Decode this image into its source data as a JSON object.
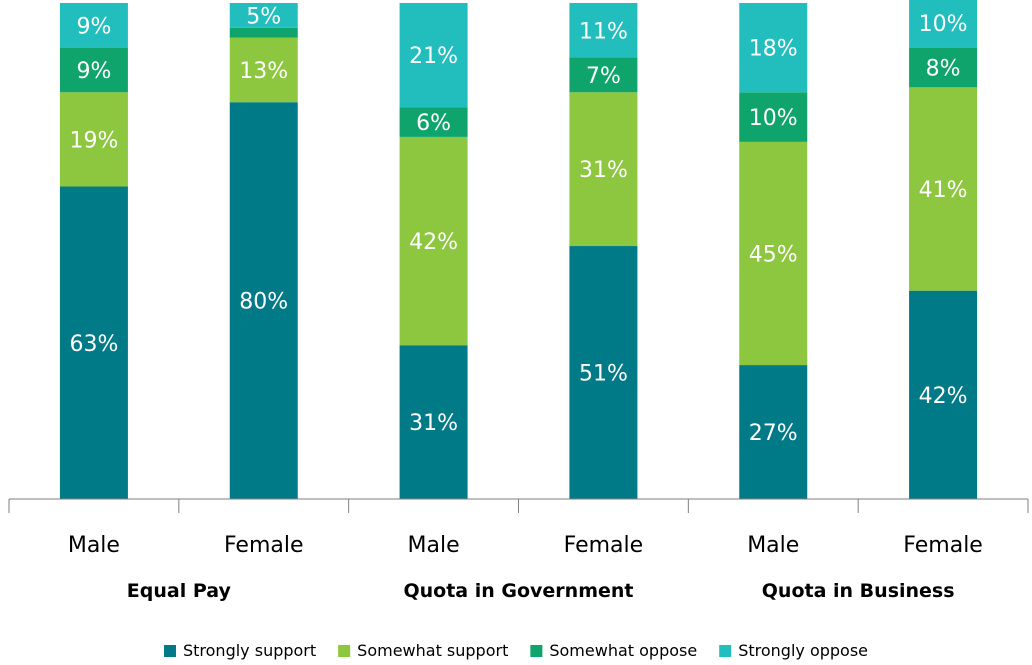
{
  "chart_data": {
    "type": "bar",
    "stacked": true,
    "categories": [
      "Male",
      "Female",
      "Male",
      "Female",
      "Male",
      "Female"
    ],
    "groups": [
      {
        "label": "Equal Pay",
        "categories": [
          "Male",
          "Female"
        ]
      },
      {
        "label": "Quota in Government",
        "categories": [
          "Male",
          "Female"
        ]
      },
      {
        "label": "Quota in Business",
        "categories": [
          "Male",
          "Female"
        ]
      }
    ],
    "series": [
      {
        "name": "Strongly support",
        "color": "#007A87",
        "values": [
          63,
          80,
          31,
          51,
          27,
          42
        ]
      },
      {
        "name": "Somewhat support",
        "color": "#8DC63F",
        "values": [
          19,
          13,
          42,
          31,
          45,
          41
        ]
      },
      {
        "name": "Somewhat oppose",
        "color": "#0FA46C",
        "values": [
          9,
          2,
          6,
          7,
          10,
          8
        ]
      },
      {
        "name": "Strongly oppose",
        "color": "#22BDBD",
        "values": [
          9,
          5,
          21,
          11,
          18,
          10
        ]
      }
    ],
    "data_labels": [
      [
        "63%",
        "19%",
        "9%",
        "9%"
      ],
      [
        "80%",
        "13%",
        "",
        "5%"
      ],
      [
        "31%",
        "42%",
        "6%",
        "21%"
      ],
      [
        "51%",
        "31%",
        "7%",
        "11%"
      ],
      [
        "27%",
        "45%",
        "10%",
        "18%"
      ],
      [
        "42%",
        "41%",
        "8%",
        "10%"
      ]
    ],
    "ylim": [
      0,
      100
    ],
    "legend_position": "bottom",
    "grid": false
  }
}
